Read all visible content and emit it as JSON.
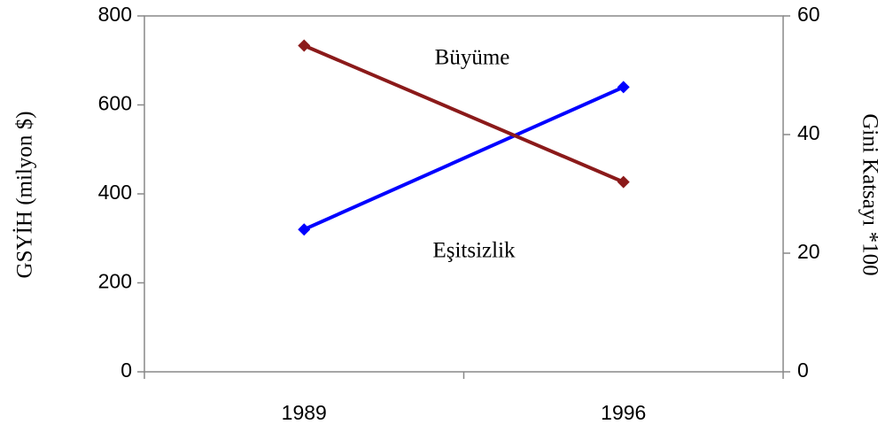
{
  "chart_data": {
    "type": "line",
    "categories": [
      "1989",
      "1996"
    ],
    "series": [
      {
        "color": "#0000ff",
        "values": [
          320,
          640
        ]
      },
      {
        "color": "#8b1a1a",
        "values": [
          55,
          32
        ],
        "axis": "y2"
      }
    ],
    "ylabel": "GSYİH (milyon $)",
    "y2label": "Gini Katsayı *100",
    "ylim": [
      0,
      800
    ],
    "yticks": [
      0,
      200,
      400,
      600,
      800
    ],
    "y2lim": [
      0,
      60
    ],
    "y2ticks": [
      0,
      20,
      40,
      60
    ],
    "annotations": [
      "Büyüme",
      "Eşitsizlik"
    ]
  }
}
